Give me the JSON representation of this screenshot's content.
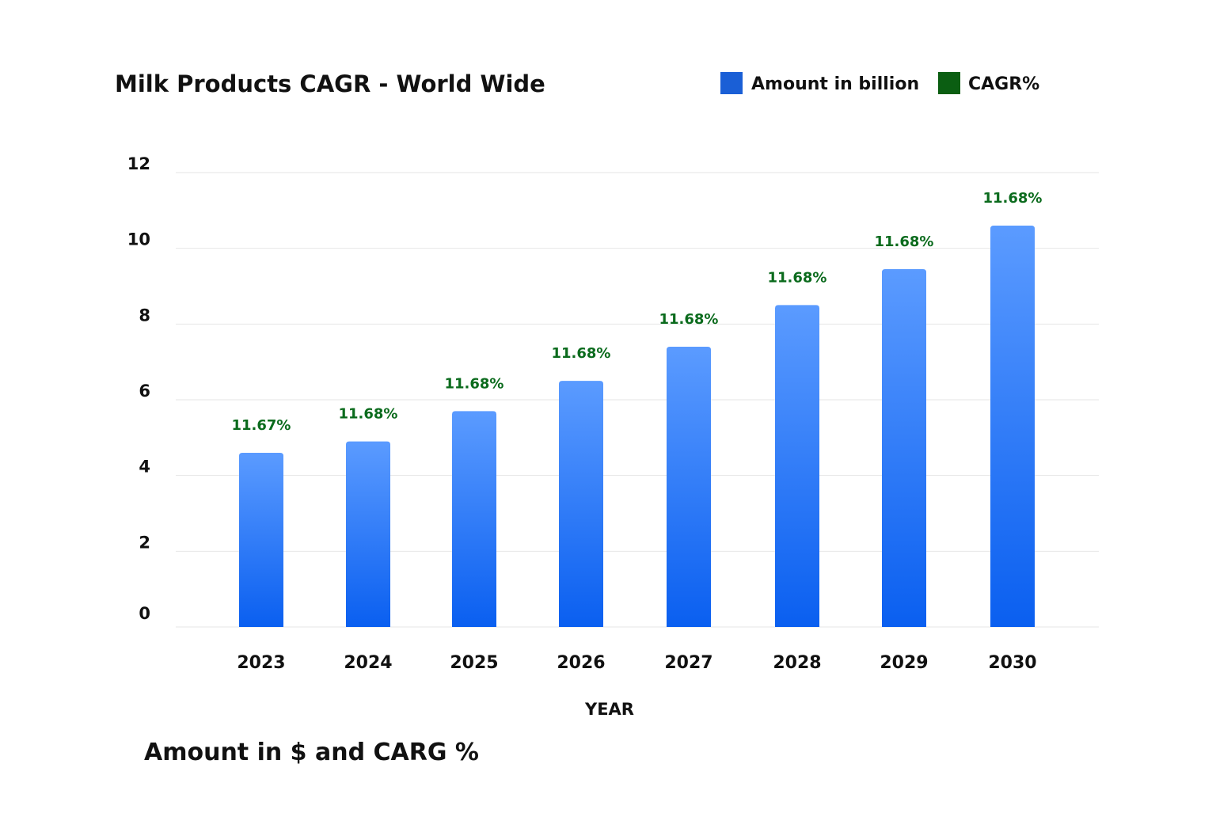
{
  "chart_data": {
    "type": "bar",
    "title": "Milk Products CAGR - World Wide",
    "subtitle": "Amount in $ and CARG %",
    "xlabel": "YEAR",
    "ylabel": "",
    "ylim": [
      0,
      12
    ],
    "yticks": [
      "0",
      "2",
      "4",
      "6",
      "8",
      "10",
      "12"
    ],
    "grid": true,
    "legend_position": "top-right",
    "categories": [
      "2023",
      "2024",
      "2025",
      "2026",
      "2027",
      "2028",
      "2029",
      "2030"
    ],
    "series": [
      {
        "name": "Amount in billion",
        "color": "#1a5fd6",
        "values": [
          4.6,
          4.9,
          5.7,
          6.5,
          7.4,
          8.5,
          9.45,
          10.6
        ]
      },
      {
        "name": "CAGR%",
        "color": "#0b5e12",
        "labels": [
          "11.67%",
          "11.68%",
          "11.68%",
          "11.68%",
          "11.68%",
          "11.68%",
          "11.68%",
          "11.68%"
        ]
      }
    ],
    "bar_gradient": [
      "#5b9bff",
      "#0a5ff0"
    ]
  }
}
